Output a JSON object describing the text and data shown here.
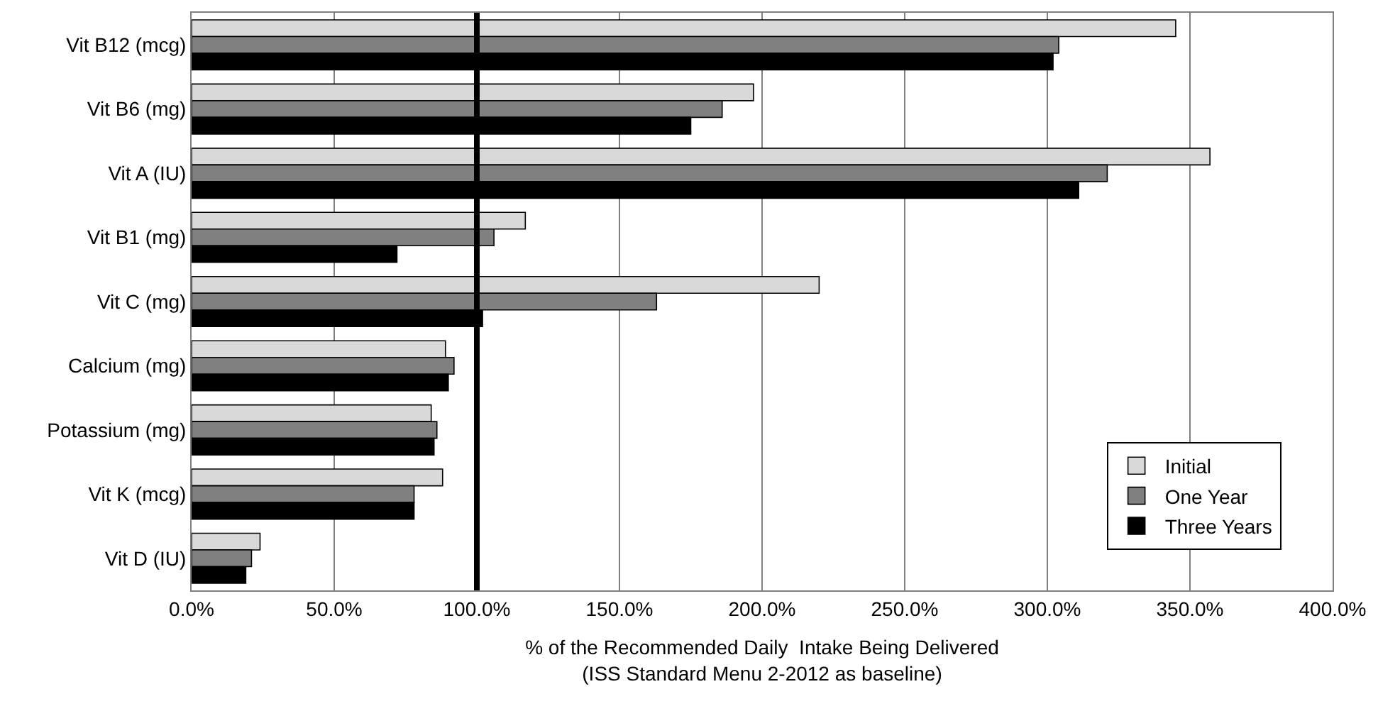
{
  "chart_data": {
    "type": "bar",
    "orientation": "horizontal",
    "categories": [
      "Vit B12 (mcg)",
      "Vit B6 (mg)",
      "Vit A (IU)",
      "Vit B1 (mg)",
      "Vit C (mg)",
      "Calcium (mg)",
      "Potassium (mg)",
      "Vit K (mcg)",
      "Vit D (IU)"
    ],
    "series": [
      {
        "name": "Initial",
        "color": "#d9d9d9",
        "values": [
          345,
          197,
          357,
          117,
          220,
          89,
          84,
          88,
          24
        ]
      },
      {
        "name": "One Year",
        "color": "#808080",
        "values": [
          304,
          186,
          321,
          106,
          163,
          92,
          86,
          78,
          21
        ]
      },
      {
        "name": "Three Years",
        "color": "#000000",
        "values": [
          302,
          175,
          311,
          72,
          102,
          90,
          85,
          78,
          19
        ]
      }
    ],
    "xlabel": "% of the Recommended Daily  Intake Being Delivered\n(ISS Standard Menu 2-2012 as baseline)",
    "xlim": [
      0,
      400
    ],
    "xticks": [
      {
        "value": 0,
        "label": "0.0%"
      },
      {
        "value": 50,
        "label": "50.0%"
      },
      {
        "value": 100,
        "label": "100.0%"
      },
      {
        "value": 150,
        "label": "150.0%"
      },
      {
        "value": 200,
        "label": "200.0%"
      },
      {
        "value": 250,
        "label": "250.0%"
      },
      {
        "value": 300,
        "label": "300.0%"
      },
      {
        "value": 350,
        "label": "350.0%"
      },
      {
        "value": 400,
        "label": "400.0%"
      }
    ],
    "ref_lines": [
      {
        "axis": "x",
        "value": 100,
        "color": "#000000"
      }
    ],
    "grid": "x",
    "legend": "bottom right"
  }
}
